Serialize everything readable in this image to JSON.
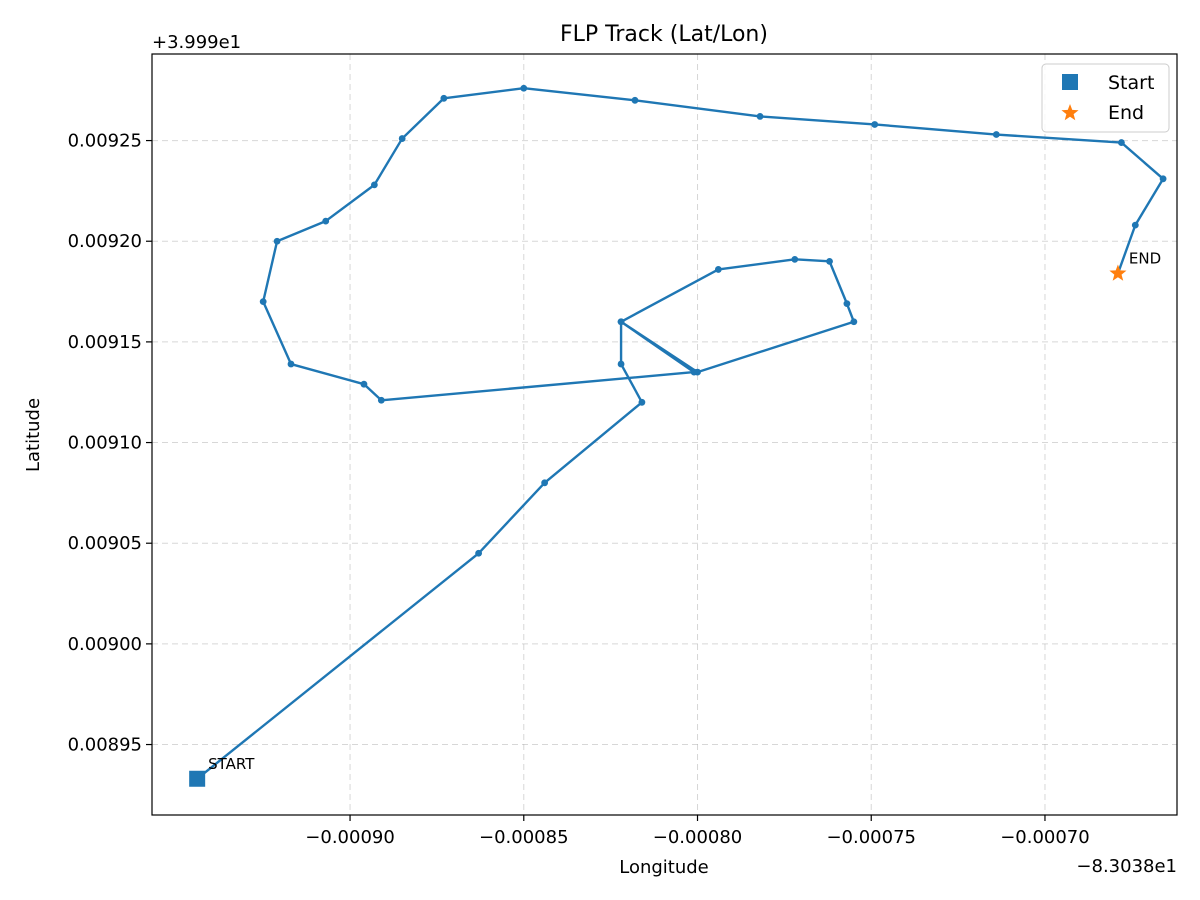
{
  "chart_data": {
    "type": "line",
    "title": "FLP Track (Lat/Lon)",
    "xlabel": "Longitude",
    "ylabel": "Latitude",
    "x_offset_label": "−8.3038e1",
    "y_offset_label": "+3.999e1",
    "x_offset": -83.038,
    "y_offset": 39.99,
    "xlim": [
      -0.000957,
      -0.000662
    ],
    "ylim": [
      0.008915,
      0.009293
    ],
    "x_ticks": [
      -0.0009,
      -0.00085,
      -0.0008,
      -0.00075,
      -0.0007
    ],
    "x_tick_labels": [
      "−0.00090",
      "−0.00085",
      "−0.00080",
      "−0.00075",
      "−0.00070"
    ],
    "y_ticks": [
      0.00895,
      0.009,
      0.00905,
      0.0091,
      0.00915,
      0.0092,
      0.00925
    ],
    "y_tick_labels": [
      "0.00895",
      "0.00900",
      "0.00905",
      "0.00910",
      "0.00915",
      "0.00920",
      "0.00925"
    ],
    "grid": true,
    "legend_position": "top-right",
    "legend": [
      {
        "label": "Start",
        "marker": "square",
        "color": "#1f77b4"
      },
      {
        "label": "End",
        "marker": "star",
        "color": "#ff7f0e"
      }
    ],
    "annotations": [
      {
        "text": "START",
        "x": -0.000944,
        "y": 0.008933
      },
      {
        "text": "END",
        "x": -0.000679,
        "y": 0.009184
      }
    ],
    "series": [
      {
        "color": "#1f77b4",
        "x": [
          -0.000944,
          -0.000863,
          -0.000844,
          -0.000816,
          -0.000822,
          -0.000822,
          -0.0008,
          -0.000755,
          -0.000757,
          -0.000762,
          -0.000772,
          -0.000794,
          -0.000822,
          -0.000801,
          -0.000891,
          -0.000896,
          -0.000917,
          -0.000925,
          -0.000921,
          -0.000907,
          -0.000893,
          -0.000885,
          -0.000873,
          -0.00085,
          -0.000818,
          -0.000782,
          -0.000749,
          -0.000714,
          -0.000678,
          -0.000666,
          -0.000674,
          -0.000679
        ],
        "y": [
          0.008933,
          0.009045,
          0.00908,
          0.00912,
          0.009139,
          0.00916,
          0.009135,
          0.00916,
          0.009169,
          0.00919,
          0.009191,
          0.009186,
          0.00916,
          0.009135,
          0.009121,
          0.009129,
          0.009139,
          0.00917,
          0.0092,
          0.00921,
          0.009228,
          0.009251,
          0.009271,
          0.009276,
          0.00927,
          0.009262,
          0.009258,
          0.009253,
          0.009249,
          0.009231,
          0.009208,
          0.009184
        ]
      }
    ],
    "start_point": {
      "x": -0.000944,
      "y": 0.008933
    },
    "end_point": {
      "x": -0.000679,
      "y": 0.009184
    }
  }
}
